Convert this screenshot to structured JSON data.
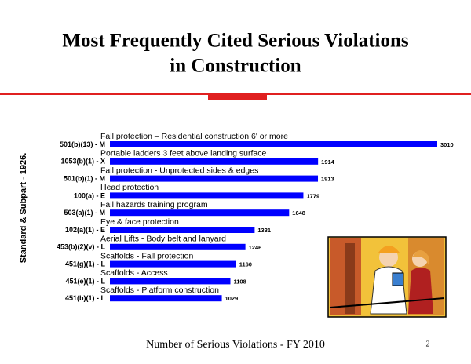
{
  "chart_data": {
    "type": "bar",
    "orientation": "horizontal",
    "title": "Most Frequently Cited Serious Violations",
    "subtitle": "in Construction",
    "y_axis_label": "Standard & Subpart - 1926.",
    "x_axis_label": "Number of Serious Violations - FY 2010",
    "page_number": "2",
    "categories": [
      "501(b)(13) - M",
      "1053(b)(1) - X",
      "501(b)(1) - M",
      "100(a) - E",
      "503(a)(1) - M",
      "102(a)(1) - E",
      "453(b)(2)(v) - L",
      "451(g)(1) - L",
      "451(e)(1) - L",
      "451(b)(1) - L"
    ],
    "descriptions": [
      "Fall protection – Residential construction 6' or more",
      "Portable ladders 3 feet above landing surface",
      "Fall protection - Unprotected sides & edges",
      "Head protection",
      "Fall hazards training program",
      "Eye & face protection",
      "Aerial Lifts - Body belt and lanyard",
      "Scaffolds - Fall protection",
      "Scaffolds - Access",
      "Scaffolds - Platform construction"
    ],
    "values": [
      3010,
      1914,
      1913,
      1779,
      1648,
      1331,
      1246,
      1160,
      1108,
      1029
    ],
    "color": "#0000ff"
  }
}
